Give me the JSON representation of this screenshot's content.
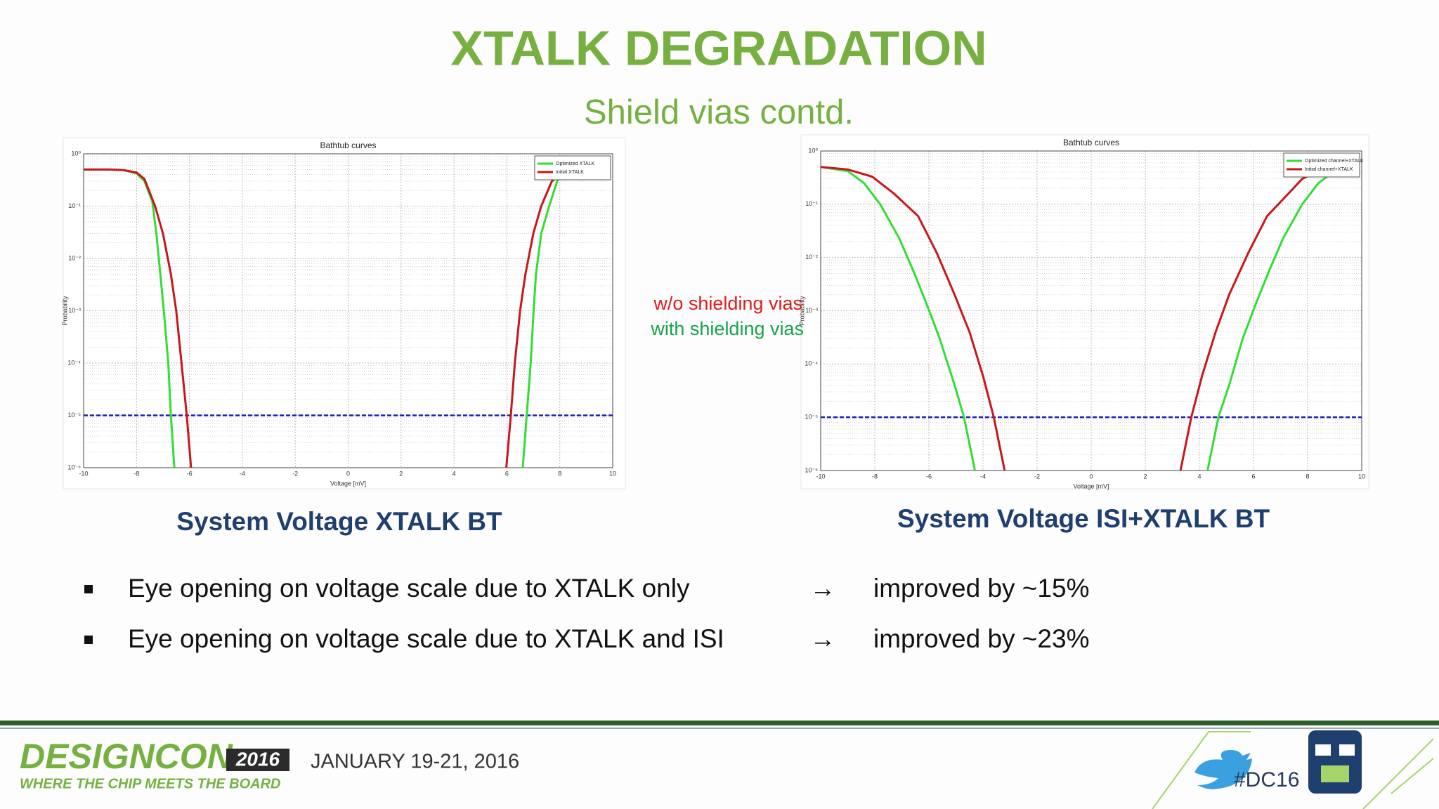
{
  "slide": {
    "title": "XTALK DEGRADATION",
    "subtitle": "Shield vias contd.",
    "annotations": [
      {
        "text": "w/o shielding vias",
        "color": "#e01b1b"
      },
      {
        "text": "with shielding vias",
        "color": "#16a34a"
      }
    ],
    "captions": [
      "System Voltage XTALK BT",
      "System Voltage ISI+XTALK BT"
    ],
    "bullets": [
      {
        "text": "Eye opening on voltage scale due to XTALK only",
        "arrow": "→",
        "result": "improved by ~15%"
      },
      {
        "text": "Eye opening on voltage scale due to XTALK and ISI",
        "arrow": "→",
        "result": "improved by ~23%"
      }
    ],
    "footer": {
      "brand": "DESIGNCON",
      "year": "2016",
      "tagline": "WHERE THE CHIP MEETS THE BOARD",
      "dates": "JANUARY 19-21, 2016",
      "hashtag": "#DC16"
    }
  },
  "chart_data": [
    {
      "type": "line",
      "title": "Bathtub curves",
      "x_label": "Voltage [mV]",
      "y_label": "Probability",
      "log_y": true,
      "grid": true,
      "minor_grid": true,
      "legend": "top-right",
      "xlim": [
        -10,
        10
      ],
      "xticks": [
        -10,
        -8,
        -6,
        -4,
        -2,
        0,
        2,
        4,
        6,
        8,
        10
      ],
      "ylim": [
        1e-06,
        1
      ],
      "yticks": [
        {
          "value": 1,
          "label": "10⁰"
        },
        {
          "value": 0.1,
          "label": "10⁻¹"
        },
        {
          "value": 0.01,
          "label": "10⁻²"
        },
        {
          "value": 0.001,
          "label": "10⁻³"
        },
        {
          "value": 0.0001,
          "label": "10⁻⁴"
        },
        {
          "value": 1e-05,
          "label": "10⁻⁵"
        },
        {
          "value": 1e-06,
          "label": "10⁻⁶"
        }
      ],
      "reference_line": {
        "value": 1e-05,
        "color": "#1f1fb4"
      },
      "series": [
        {
          "name": "Optimized XTALK",
          "color": "#33dd33",
          "x": [
            -10,
            -9,
            -8.5,
            -8,
            -7.7,
            -7.4,
            -7.25,
            -7.1,
            -6.95,
            -6.8,
            -6.7,
            -6.57,
            null,
            6.6,
            6.75,
            6.9,
            7.0,
            7.1,
            7.3,
            7.6,
            7.9,
            8.2
          ],
          "values": [
            0.5,
            0.5,
            0.49,
            0.42,
            0.3,
            0.12,
            0.03,
            0.005,
            0.0008,
            0.0001,
            1e-05,
            1e-06,
            null,
            1e-06,
            1e-05,
            0.0001,
            0.0008,
            0.005,
            0.03,
            0.1,
            0.3,
            0.45
          ]
        },
        {
          "name": "Initial XTALK",
          "color": "#c8161d",
          "x": [
            -10,
            -9,
            -8.5,
            -8,
            -7.7,
            -7.3,
            -7.0,
            -6.7,
            -6.5,
            -6.3,
            -6.1,
            -5.94,
            null,
            5.98,
            6.15,
            6.3,
            6.5,
            6.7,
            7.0,
            7.3,
            7.7,
            8.2
          ],
          "values": [
            0.5,
            0.5,
            0.49,
            0.44,
            0.33,
            0.1,
            0.03,
            0.005,
            0.001,
            0.0001,
            1e-05,
            1e-06,
            null,
            1e-06,
            1e-05,
            0.0001,
            0.001,
            0.005,
            0.03,
            0.1,
            0.3,
            0.45
          ]
        }
      ]
    },
    {
      "type": "line",
      "title": "Bathtub curves",
      "x_label": "Voltage [mV]",
      "y_label": "Probability",
      "log_y": true,
      "grid": true,
      "minor_grid": true,
      "legend": "top-right",
      "xlim": [
        -10,
        10
      ],
      "xticks": [
        -10,
        -8,
        -6,
        -4,
        -2,
        0,
        2,
        4,
        6,
        8,
        10
      ],
      "ylim": [
        1e-06,
        1
      ],
      "yticks": [
        {
          "value": 1,
          "label": "10⁰"
        },
        {
          "value": 0.1,
          "label": "10⁻¹"
        },
        {
          "value": 0.01,
          "label": "10⁻²"
        },
        {
          "value": 0.001,
          "label": "10⁻³"
        },
        {
          "value": 0.0001,
          "label": "10⁻⁴"
        },
        {
          "value": 1e-05,
          "label": "10⁻⁵"
        },
        {
          "value": 1e-06,
          "label": "10⁻⁶"
        }
      ],
      "reference_line": {
        "value": 1e-05,
        "color": "#1f1fb4"
      },
      "series": [
        {
          "name": "Optimized channel+XTALK",
          "color": "#33dd33",
          "x": [
            -10,
            -9,
            -8.4,
            -7.8,
            -7.1,
            -6.6,
            -6.1,
            -5.6,
            -5.05,
            -4.7,
            -4.3,
            null,
            4.3,
            4.7,
            5.1,
            5.6,
            6.1,
            6.6,
            7.1,
            7.8,
            8.4,
            9.2
          ],
          "values": [
            0.5,
            0.42,
            0.25,
            0.1,
            0.023,
            0.006,
            0.0014,
            0.0003,
            4e-05,
            1e-05,
            1e-06,
            null,
            1e-06,
            1e-05,
            4e-05,
            0.0003,
            0.0014,
            0.006,
            0.023,
            0.1,
            0.25,
            0.5
          ]
        },
        {
          "name": "Initial channel+XTALK",
          "color": "#c8161d",
          "x": [
            -10,
            -9,
            -8.1,
            -7.3,
            -6.4,
            -5.7,
            -5.05,
            -4.5,
            -4.0,
            -3.6,
            -3.2,
            null,
            3.3,
            3.7,
            4.1,
            4.6,
            5.1,
            5.8,
            6.5,
            7.3,
            7.8,
            8.7
          ],
          "values": [
            0.5,
            0.45,
            0.33,
            0.16,
            0.06,
            0.012,
            0.002,
            0.0004,
            6e-05,
            1e-05,
            1e-06,
            null,
            1e-06,
            1e-05,
            6e-05,
            0.0004,
            0.002,
            0.012,
            0.06,
            0.16,
            0.3,
            0.5
          ]
        }
      ]
    }
  ]
}
